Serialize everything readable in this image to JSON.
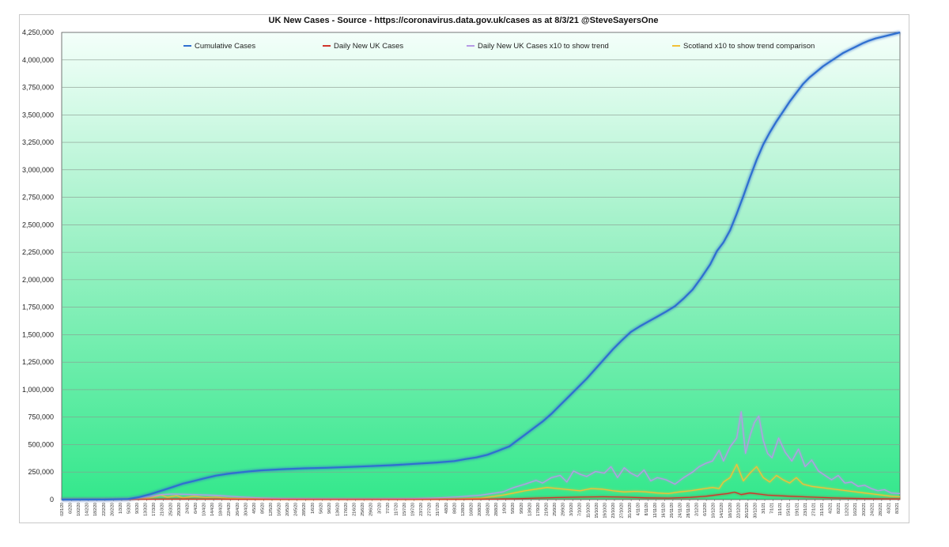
{
  "chart_data": {
    "type": "line",
    "title": "UK New Cases - Source - https://coronavirus.data.gov.uk/cases as at 8/3/21 @SteveSayersOne",
    "xlabel": "",
    "ylabel": "",
    "ylim": [
      0,
      4250000
    ],
    "yticks": [
      0,
      250000,
      500000,
      750000,
      1000000,
      1250000,
      1500000,
      1750000,
      2000000,
      2250000,
      2500000,
      2750000,
      3000000,
      3250000,
      3500000,
      3750000,
      4000000,
      4250000
    ],
    "ytick_labels": [
      "0",
      "250,000",
      "500,000",
      "750,000",
      "1,000,000",
      "1,250,000",
      "1,500,000",
      "1,750,000",
      "2,000,000",
      "2,250,000",
      "2,500,000",
      "2,750,000",
      "3,000,000",
      "3,250,000",
      "3,500,000",
      "3,750,000",
      "4,000,000",
      "4,250,000"
    ],
    "grid": true,
    "legend_position": "top",
    "x_tick_labels": [
      "02/1/20",
      "6/2/20",
      "10/2/20",
      "14/2/20",
      "18/2/20",
      "22/2/20",
      "26/2/20",
      "1/3/20",
      "5/3/20",
      "9/3/20",
      "13/3/20",
      "17/3/20",
      "21/3/20",
      "25/3/20",
      "29/3/20",
      "2/4/20",
      "6/4/20",
      "10/4/20",
      "14/4/20",
      "18/4/20",
      "22/4/20",
      "26/4/20",
      "30/4/20",
      "4/5/20",
      "8/5/20",
      "12/5/20",
      "16/5/20",
      "20/5/20",
      "24/5/20",
      "28/5/20",
      "1/6/20",
      "5/6/20",
      "9/6/20",
      "13/6/20",
      "17/6/20",
      "21/6/20",
      "25/6/20",
      "29/6/20",
      "3/7/20",
      "7/7/20",
      "11/7/20",
      "15/7/20",
      "19/7/20",
      "23/7/20",
      "27/7/20",
      "31/7/20",
      "4/8/20",
      "8/8/20",
      "12/8/20",
      "16/8/20",
      "20/8/20",
      "24/8/20",
      "28/8/20",
      "1/9/20",
      "5/9/20",
      "9/9/20",
      "13/9/20",
      "17/9/20",
      "21/9/20",
      "25/9/20",
      "29/9/20",
      "3/10/20",
      "7/10/20",
      "11/10/20",
      "15/10/20",
      "19/10/20",
      "23/10/20",
      "27/10/20",
      "31/10/20",
      "4/11/20",
      "8/11/20",
      "12/11/20",
      "16/11/20",
      "20/11/20",
      "24/11/20",
      "28/11/20",
      "2/12/20",
      "6/12/20",
      "10/12/20",
      "14/12/20",
      "18/12/20",
      "22/12/20",
      "26/12/20",
      "30/12/20",
      "3/1/21",
      "7/1/21",
      "11/1/21",
      "15/1/21",
      "19/1/21",
      "23/1/21",
      "27/1/21",
      "31/1/21",
      "4/2/21",
      "8/2/21",
      "12/2/21",
      "16/2/21",
      "20/2/21",
      "24/2/21",
      "28/2/21",
      "4/3/21",
      "8/3/21"
    ],
    "series": [
      {
        "name": "Cumulative Cases",
        "color": "#2f6fd0",
        "points": [
          [
            0,
            0
          ],
          [
            3,
            100
          ],
          [
            20,
            1000
          ],
          [
            30,
            5000
          ],
          [
            35,
            22000
          ],
          [
            40,
            48000
          ],
          [
            45,
            80000
          ],
          [
            50,
            112000
          ],
          [
            55,
            145000
          ],
          [
            60,
            170000
          ],
          [
            65,
            195000
          ],
          [
            70,
            218000
          ],
          [
            75,
            234000
          ],
          [
            80,
            245000
          ],
          [
            85,
            256000
          ],
          [
            90,
            265000
          ],
          [
            100,
            276000
          ],
          [
            110,
            284000
          ],
          [
            120,
            289000
          ],
          [
            130,
            296000
          ],
          [
            140,
            304000
          ],
          [
            150,
            313000
          ],
          [
            160,
            325000
          ],
          [
            170,
            337000
          ],
          [
            178,
            350000
          ],
          [
            183,
            368000
          ],
          [
            188,
            383000
          ],
          [
            193,
            408000
          ],
          [
            198,
            445000
          ],
          [
            203,
            485000
          ],
          [
            206,
            530000
          ],
          [
            210,
            590000
          ],
          [
            214,
            650000
          ],
          [
            218,
            710000
          ],
          [
            222,
            780000
          ],
          [
            226,
            860000
          ],
          [
            230,
            940000
          ],
          [
            234,
            1020000
          ],
          [
            238,
            1100000
          ],
          [
            242,
            1190000
          ],
          [
            246,
            1280000
          ],
          [
            250,
            1370000
          ],
          [
            254,
            1450000
          ],
          [
            258,
            1525000
          ],
          [
            262,
            1575000
          ],
          [
            266,
            1620000
          ],
          [
            270,
            1665000
          ],
          [
            274,
            1710000
          ],
          [
            278,
            1760000
          ],
          [
            282,
            1830000
          ],
          [
            286,
            1910000
          ],
          [
            290,
            2020000
          ],
          [
            294,
            2140000
          ],
          [
            297,
            2260000
          ],
          [
            300,
            2340000
          ],
          [
            303,
            2450000
          ],
          [
            306,
            2600000
          ],
          [
            309,
            2760000
          ],
          [
            312,
            2930000
          ],
          [
            315,
            3090000
          ],
          [
            318,
            3230000
          ],
          [
            321,
            3340000
          ],
          [
            324,
            3440000
          ],
          [
            327,
            3530000
          ],
          [
            330,
            3620000
          ],
          [
            333,
            3700000
          ],
          [
            336,
            3780000
          ],
          [
            339,
            3840000
          ],
          [
            342,
            3890000
          ],
          [
            345,
            3940000
          ],
          [
            348,
            3980000
          ],
          [
            351,
            4020000
          ],
          [
            354,
            4060000
          ],
          [
            357,
            4090000
          ],
          [
            360,
            4120000
          ],
          [
            363,
            4150000
          ],
          [
            366,
            4175000
          ],
          [
            369,
            4195000
          ],
          [
            372,
            4210000
          ],
          [
            375,
            4225000
          ],
          [
            378,
            4240000
          ],
          [
            380,
            4250000
          ]
        ]
      },
      {
        "name": "Daily New UK Cases",
        "color": "#d0352b",
        "points": [
          [
            0,
            0
          ],
          [
            30,
            300
          ],
          [
            45,
            4000
          ],
          [
            55,
            5000
          ],
          [
            70,
            4000
          ],
          [
            80,
            2500
          ],
          [
            90,
            1500
          ],
          [
            120,
            700
          ],
          [
            160,
            1000
          ],
          [
            180,
            2500
          ],
          [
            195,
            4000
          ],
          [
            205,
            7000
          ],
          [
            215,
            14000
          ],
          [
            225,
            19000
          ],
          [
            235,
            22000
          ],
          [
            245,
            25000
          ],
          [
            255,
            22000
          ],
          [
            265,
            16000
          ],
          [
            275,
            14000
          ],
          [
            285,
            20000
          ],
          [
            292,
            30000
          ],
          [
            298,
            45000
          ],
          [
            302,
            55000
          ],
          [
            305,
            68000
          ],
          [
            308,
            45000
          ],
          [
            312,
            60000
          ],
          [
            316,
            50000
          ],
          [
            320,
            40000
          ],
          [
            330,
            30000
          ],
          [
            340,
            22000
          ],
          [
            350,
            15000
          ],
          [
            360,
            11000
          ],
          [
            370,
            7000
          ],
          [
            380,
            5500
          ]
        ]
      },
      {
        "name": "Daily New UK Cases x10 to show trend",
        "color": "#b69ae6",
        "points": [
          [
            0,
            0
          ],
          [
            20,
            1000
          ],
          [
            30,
            5000
          ],
          [
            35,
            15000
          ],
          [
            40,
            30000
          ],
          [
            45,
            45000
          ],
          [
            50,
            50000
          ],
          [
            55,
            48000
          ],
          [
            60,
            45000
          ],
          [
            65,
            42000
          ],
          [
            70,
            38000
          ],
          [
            75,
            32000
          ],
          [
            80,
            25000
          ],
          [
            90,
            15000
          ],
          [
            100,
            10000
          ],
          [
            120,
            7000
          ],
          [
            140,
            6000
          ],
          [
            160,
            9000
          ],
          [
            170,
            15000
          ],
          [
            180,
            25000
          ],
          [
            190,
            40000
          ],
          [
            200,
            70000
          ],
          [
            205,
            110000
          ],
          [
            210,
            140000
          ],
          [
            215,
            175000
          ],
          [
            218,
            150000
          ],
          [
            222,
            200000
          ],
          [
            226,
            220000
          ],
          [
            229,
            160000
          ],
          [
            232,
            260000
          ],
          [
            235,
            230000
          ],
          [
            238,
            210000
          ],
          [
            242,
            255000
          ],
          [
            246,
            240000
          ],
          [
            249,
            300000
          ],
          [
            252,
            200000
          ],
          [
            255,
            290000
          ],
          [
            258,
            240000
          ],
          [
            261,
            210000
          ],
          [
            264,
            270000
          ],
          [
            267,
            170000
          ],
          [
            270,
            200000
          ],
          [
            274,
            180000
          ],
          [
            278,
            140000
          ],
          [
            282,
            200000
          ],
          [
            286,
            250000
          ],
          [
            289,
            300000
          ],
          [
            292,
            330000
          ],
          [
            295,
            350000
          ],
          [
            298,
            450000
          ],
          [
            300,
            350000
          ],
          [
            303,
            480000
          ],
          [
            306,
            560000
          ],
          [
            308,
            800000
          ],
          [
            310,
            420000
          ],
          [
            312,
            580000
          ],
          [
            314,
            700000
          ],
          [
            316,
            760000
          ],
          [
            318,
            540000
          ],
          [
            320,
            420000
          ],
          [
            322,
            380000
          ],
          [
            325,
            560000
          ],
          [
            328,
            430000
          ],
          [
            331,
            350000
          ],
          [
            334,
            460000
          ],
          [
            337,
            300000
          ],
          [
            340,
            360000
          ],
          [
            343,
            260000
          ],
          [
            346,
            220000
          ],
          [
            349,
            180000
          ],
          [
            352,
            220000
          ],
          [
            355,
            150000
          ],
          [
            358,
            160000
          ],
          [
            361,
            120000
          ],
          [
            364,
            130000
          ],
          [
            367,
            100000
          ],
          [
            370,
            80000
          ],
          [
            373,
            90000
          ],
          [
            376,
            60000
          ],
          [
            380,
            55000
          ]
        ]
      },
      {
        "name": "Scotland x10 to show trend comparison",
        "color": "#f2c037",
        "points": [
          [
            0,
            0
          ],
          [
            20,
            500
          ],
          [
            30,
            2000
          ],
          [
            40,
            15000
          ],
          [
            45,
            40000
          ],
          [
            48,
            20000
          ],
          [
            52,
            35000
          ],
          [
            55,
            15000
          ],
          [
            60,
            30000
          ],
          [
            65,
            18000
          ],
          [
            70,
            22000
          ],
          [
            75,
            12000
          ],
          [
            80,
            10000
          ],
          [
            90,
            6000
          ],
          [
            100,
            3000
          ],
          [
            120,
            1500
          ],
          [
            140,
            1500
          ],
          [
            160,
            2500
          ],
          [
            180,
            6000
          ],
          [
            190,
            12000
          ],
          [
            200,
            40000
          ],
          [
            205,
            60000
          ],
          [
            210,
            80000
          ],
          [
            215,
            95000
          ],
          [
            220,
            110000
          ],
          [
            225,
            100000
          ],
          [
            230,
            90000
          ],
          [
            235,
            80000
          ],
          [
            240,
            100000
          ],
          [
            245,
            95000
          ],
          [
            250,
            80000
          ],
          [
            255,
            70000
          ],
          [
            260,
            75000
          ],
          [
            265,
            70000
          ],
          [
            270,
            60000
          ],
          [
            275,
            55000
          ],
          [
            280,
            70000
          ],
          [
            285,
            80000
          ],
          [
            290,
            95000
          ],
          [
            295,
            110000
          ],
          [
            298,
            100000
          ],
          [
            300,
            160000
          ],
          [
            303,
            200000
          ],
          [
            306,
            320000
          ],
          [
            309,
            170000
          ],
          [
            312,
            240000
          ],
          [
            315,
            300000
          ],
          [
            318,
            200000
          ],
          [
            321,
            160000
          ],
          [
            324,
            220000
          ],
          [
            327,
            180000
          ],
          [
            330,
            150000
          ],
          [
            333,
            200000
          ],
          [
            336,
            140000
          ],
          [
            340,
            120000
          ],
          [
            344,
            110000
          ],
          [
            348,
            100000
          ],
          [
            352,
            90000
          ],
          [
            356,
            80000
          ],
          [
            360,
            70000
          ],
          [
            364,
            60000
          ],
          [
            368,
            50000
          ],
          [
            372,
            40000
          ],
          [
            376,
            30000
          ],
          [
            380,
            25000
          ]
        ]
      }
    ]
  }
}
